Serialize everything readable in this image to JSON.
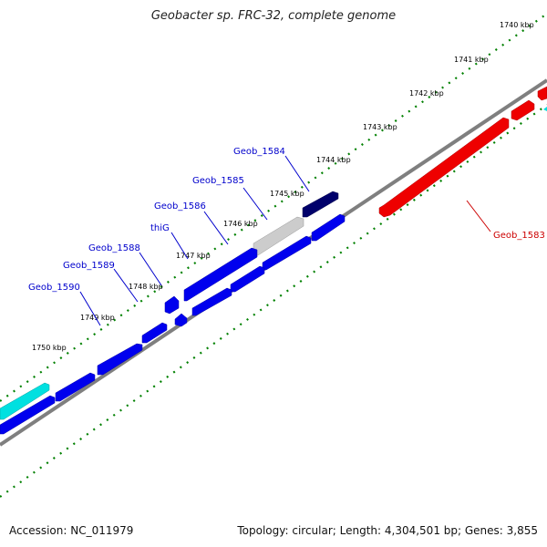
{
  "title": "Geobacter sp. FRC-32, complete genome",
  "footer": {
    "accession": "Accession: NC_011979",
    "summary": "Topology: circular; Length: 4,304,501 bp; Genes: 3,855"
  },
  "colors": {
    "forward_gene": "#0000ee",
    "forward_gene_selected": "#00006b",
    "pseudo_gene": "#cccccc",
    "reverse_gene": "#ee0000",
    "rna_gene": "#00e0e0",
    "backbone": "#7f7f7f",
    "tick": "#008000",
    "forward_label": "#0000cc",
    "reverse_label": "#cc0000"
  },
  "ticks": [
    "1740 kbp",
    "1741 kbp",
    "1742 kbp",
    "1743 kbp",
    "1744 kbp",
    "1745 kbp",
    "1746 kbp",
    "1747 kbp",
    "1748 kbp",
    "1749 kbp",
    "1750 kbp"
  ],
  "gene_labels": [
    {
      "name": "Geob_1583",
      "strand": "reverse"
    },
    {
      "name": "Geob_1584",
      "strand": "forward"
    },
    {
      "name": "Geob_1585",
      "strand": "forward"
    },
    {
      "name": "Geob_1586",
      "strand": "forward"
    },
    {
      "name": "thiG",
      "strand": "forward"
    },
    {
      "name": "Geob_1588",
      "strand": "forward"
    },
    {
      "name": "Geob_1589",
      "strand": "forward"
    },
    {
      "name": "Geob_1590",
      "strand": "forward"
    }
  ]
}
